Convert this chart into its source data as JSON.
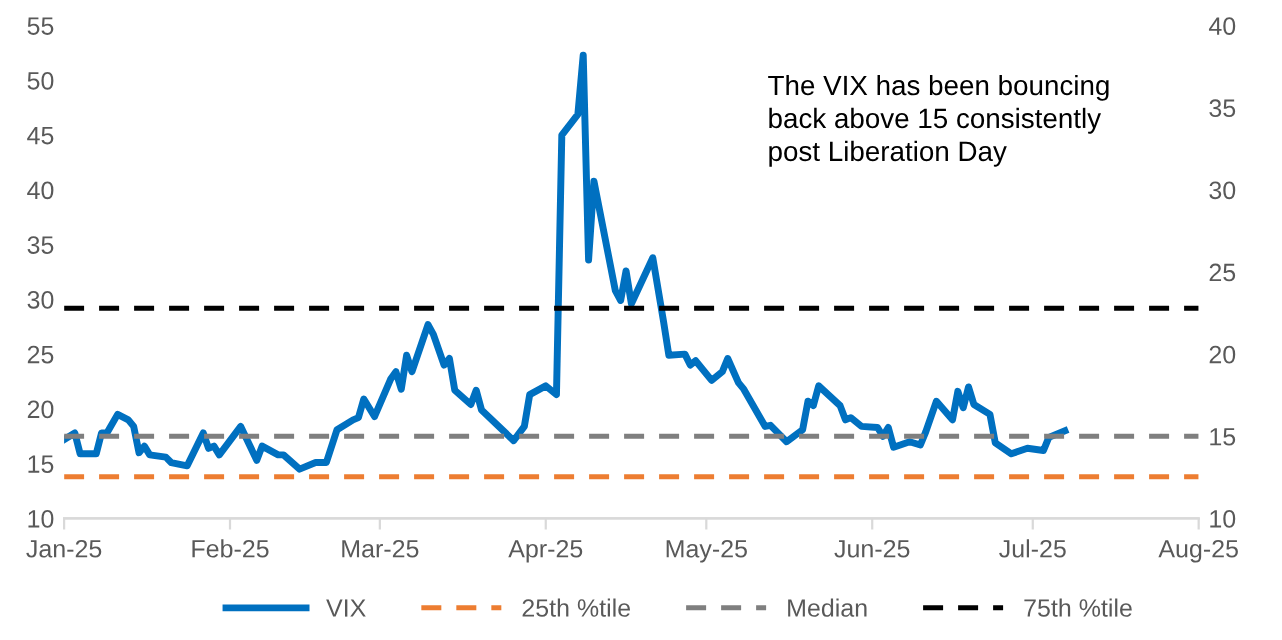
{
  "chart_data": {
    "type": "line",
    "annotations": [
      "The VIX has been bouncing\nback above 15 consistently\npost Liberation Day"
    ],
    "xlim": [
      "2025-01-01",
      "2025-08-01"
    ],
    "xticks": [
      {
        "value": "2025-01-01",
        "label": "Jan-25"
      },
      {
        "value": "2025-02-01",
        "label": "Feb-25"
      },
      {
        "value": "2025-03-01",
        "label": "Mar-25"
      },
      {
        "value": "2025-04-01",
        "label": "Apr-25"
      },
      {
        "value": "2025-05-01",
        "label": "May-25"
      },
      {
        "value": "2025-06-01",
        "label": "Jun-25"
      },
      {
        "value": "2025-07-01",
        "label": "Jul-25"
      },
      {
        "value": "2025-08-01",
        "label": "Aug-25"
      }
    ],
    "ylim": [
      10,
      55
    ],
    "yticks": [
      10,
      15,
      20,
      25,
      30,
      35,
      40,
      45,
      50,
      55
    ],
    "y2lim": [
      10,
      40
    ],
    "y2ticks": [
      10,
      15,
      20,
      25,
      30,
      35,
      40
    ],
    "grid": false,
    "legend": "bottom",
    "series": [
      {
        "name": "VIX",
        "color": "#0070c0",
        "line_style": "solid",
        "x": [
          "2025-01-01",
          "2025-01-03",
          "2025-01-04",
          "2025-01-07",
          "2025-01-08",
          "2025-01-09",
          "2025-01-11",
          "2025-01-13",
          "2025-01-14",
          "2025-01-15",
          "2025-01-16",
          "2025-01-17",
          "2025-01-20",
          "2025-01-21",
          "2025-01-24",
          "2025-01-27",
          "2025-01-28",
          "2025-01-29",
          "2025-01-30",
          "2025-02-03",
          "2025-02-06",
          "2025-02-07",
          "2025-02-10",
          "2025-02-11",
          "2025-02-14",
          "2025-02-17",
          "2025-02-19",
          "2025-02-21",
          "2025-02-24",
          "2025-02-25",
          "2025-02-26",
          "2025-02-28",
          "2025-03-03",
          "2025-03-04",
          "2025-03-05",
          "2025-03-06",
          "2025-03-07",
          "2025-03-10",
          "2025-03-11",
          "2025-03-13",
          "2025-03-14",
          "2025-03-15",
          "2025-03-18",
          "2025-03-19",
          "2025-03-20",
          "2025-03-26",
          "2025-03-28",
          "2025-03-29",
          "2025-04-01",
          "2025-04-03",
          "2025-04-04",
          "2025-04-07",
          "2025-04-08",
          "2025-04-09",
          "2025-04-10",
          "2025-04-14",
          "2025-04-15",
          "2025-04-16",
          "2025-04-17",
          "2025-04-21",
          "2025-04-23",
          "2025-04-24",
          "2025-04-27",
          "2025-04-28",
          "2025-04-29",
          "2025-05-02",
          "2025-05-04",
          "2025-05-05",
          "2025-05-07",
          "2025-05-08",
          "2025-05-12",
          "2025-05-13",
          "2025-05-16",
          "2025-05-19",
          "2025-05-20",
          "2025-05-21",
          "2025-05-22",
          "2025-05-26",
          "2025-05-27",
          "2025-05-28",
          "2025-05-30",
          "2025-06-02",
          "2025-06-03",
          "2025-06-04",
          "2025-06-05",
          "2025-06-08",
          "2025-06-10",
          "2025-06-11",
          "2025-06-13",
          "2025-06-16",
          "2025-06-17",
          "2025-06-18",
          "2025-06-19",
          "2025-06-20",
          "2025-06-23",
          "2025-06-24",
          "2025-06-27",
          "2025-06-30",
          "2025-07-03",
          "2025-07-04",
          "2025-07-07"
        ],
        "values": [
          17.2,
          17.8,
          15.9,
          15.9,
          17.8,
          17.8,
          19.5,
          19.0,
          18.4,
          16.0,
          16.6,
          15.8,
          15.6,
          15.1,
          14.8,
          17.8,
          16.4,
          16.6,
          15.8,
          18.4,
          15.3,
          16.6,
          15.8,
          15.8,
          14.5,
          15.1,
          15.1,
          18.1,
          19.0,
          19.2,
          20.9,
          19.3,
          22.7,
          23.4,
          21.8,
          24.9,
          23.4,
          27.7,
          26.8,
          24.0,
          24.6,
          21.7,
          20.4,
          21.7,
          19.9,
          17.1,
          18.4,
          21.3,
          22.1,
          21.3,
          45.0,
          46.9,
          52.3,
          33.6,
          40.8,
          30.8,
          29.9,
          32.6,
          29.6,
          33.8,
          28.0,
          24.9,
          25.0,
          24.0,
          24.4,
          22.6,
          23.4,
          24.6,
          22.4,
          21.8,
          18.4,
          18.5,
          17.0,
          18.1,
          20.7,
          20.3,
          22.1,
          20.3,
          19.0,
          19.2,
          18.4,
          18.3,
          17.5,
          18.3,
          16.5,
          17.0,
          16.7,
          17.9,
          20.7,
          19.0,
          21.6,
          20.1,
          22.0,
          20.4,
          19.5,
          16.9,
          15.9,
          16.4,
          16.2,
          17.4,
          18.0
        ]
      },
      {
        "name": "25th %tile",
        "color": "#ed7d31",
        "line_style": "dashed",
        "x": [
          "2025-01-01",
          "2025-08-01"
        ],
        "values": [
          13.8,
          13.8
        ]
      },
      {
        "name": "Median",
        "color": "#7f7f7f",
        "line_style": "dashed",
        "x": [
          "2025-01-01",
          "2025-08-01"
        ],
        "values": [
          17.5,
          17.5
        ]
      },
      {
        "name": "75th %tile",
        "color": "#000000",
        "line_style": "dashed",
        "x": [
          "2025-01-01",
          "2025-08-01"
        ],
        "values": [
          29.2,
          29.2
        ]
      }
    ]
  }
}
